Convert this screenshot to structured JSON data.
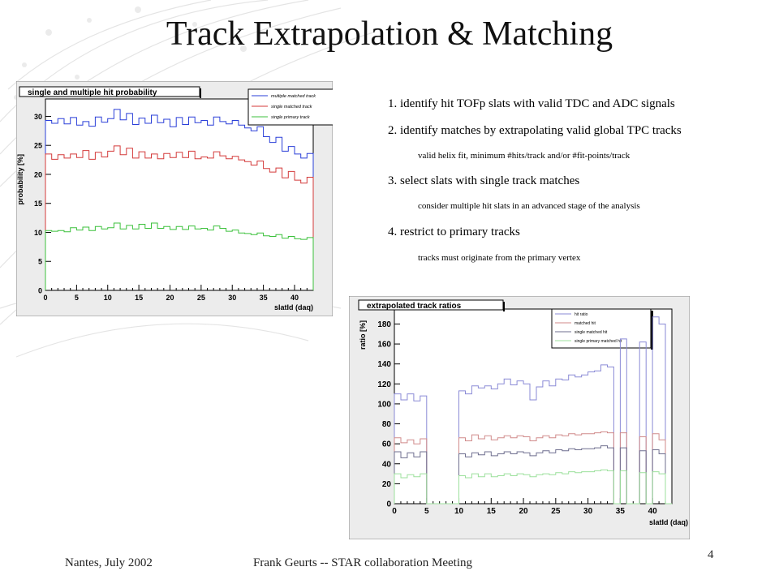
{
  "slide": {
    "title": "Track Extrapolation & Matching",
    "bullets": [
      "1.  identify hit TOFp slats with valid TDC and ADC signals",
      "2.  identify matches by extrapolating valid global TPC tracks",
      "3.  select slats with single track matches",
      "4.  restrict to primary tracks"
    ],
    "subs": [
      "valid helix fit, minimum  #hits/track  and/or  #fit-points/track",
      "consider multiple hit slats in an advanced stage of the analysis",
      "tracks must originate  from the primary  vertex"
    ],
    "footer": {
      "left": "Nantes, July  2002",
      "center": "Frank Geurts -- STAR collaboration Meeting",
      "page": "4"
    }
  },
  "chart_data": [
    {
      "type": "line",
      "title": "single and multiple hit probability",
      "xlabel": "slatId (daq)",
      "ylabel": "probability [%]",
      "xlim": [
        0,
        43
      ],
      "ylim": [
        0,
        33
      ],
      "xticks": [
        0,
        5,
        10,
        15,
        20,
        25,
        30,
        35,
        40
      ],
      "yticks": [
        0,
        5,
        10,
        15,
        20,
        25,
        30
      ],
      "series": [
        {
          "name": "multiple matched track",
          "color": "#2a3fd8",
          "values": [
            29.3,
            28.8,
            29.6,
            28.7,
            29.8,
            28.5,
            29.1,
            28.3,
            29.9,
            29.0,
            29.6,
            31.2,
            29.4,
            30.5,
            28.6,
            29.7,
            28.8,
            30.2,
            28.9,
            29.5,
            28.2,
            29.8,
            28.6,
            29.9,
            28.9,
            29.3,
            28.5,
            29.9,
            29.1,
            28.7,
            29.3,
            28.5,
            28.0,
            27.5,
            28.2,
            26.5,
            25.5,
            26.4,
            24.0,
            24.8,
            23.5,
            22.8,
            23.6
          ]
        },
        {
          "name": "single matched track",
          "color": "#d43a3a",
          "values": [
            23.5,
            22.6,
            23.4,
            22.8,
            23.5,
            22.9,
            24.1,
            22.6,
            23.8,
            23.0,
            24.0,
            24.9,
            23.4,
            24.5,
            22.8,
            23.9,
            22.8,
            23.5,
            22.7,
            23.6,
            22.9,
            23.8,
            22.9,
            24.0,
            22.7,
            23.0,
            22.8,
            23.9,
            23.2,
            22.7,
            23.1,
            22.5,
            22.2,
            21.6,
            22.3,
            21.0,
            20.4,
            21.1,
            19.4,
            20.5,
            19.0,
            18.5,
            19.5
          ]
        },
        {
          "name": "single primary track",
          "color": "#3cc13c",
          "values": [
            10.3,
            10.2,
            10.3,
            10.1,
            10.8,
            10.4,
            10.9,
            10.3,
            11.0,
            10.6,
            10.8,
            11.6,
            10.6,
            11.2,
            10.6,
            11.4,
            10.7,
            11.6,
            10.7,
            11.0,
            10.5,
            11.0,
            10.5,
            11.1,
            10.6,
            10.7,
            10.4,
            11.1,
            10.7,
            10.2,
            10.4,
            9.9,
            9.8,
            9.6,
            9.9,
            9.4,
            9.3,
            9.6,
            9.0,
            9.3,
            8.9,
            8.8,
            9.1
          ]
        }
      ]
    },
    {
      "type": "line",
      "title": "extrapolated track ratios",
      "xlabel": "slatId (daq)",
      "ylabel": "ratio [%]",
      "xlim": [
        0,
        43
      ],
      "ylim": [
        0,
        195
      ],
      "xticks": [
        0,
        5,
        10,
        15,
        20,
        25,
        30,
        35,
        40
      ],
      "yticks": [
        0,
        20,
        40,
        60,
        80,
        100,
        120,
        140,
        160,
        180
      ],
      "series": [
        {
          "name": "hit ratio",
          "color": "#8a8ad6",
          "values": [
            110,
            104,
            110,
            103,
            108,
            0,
            0,
            0,
            0,
            0,
            113,
            110,
            118,
            116,
            118,
            115,
            120,
            125,
            119,
            123,
            120,
            104,
            117,
            123,
            118,
            125,
            124,
            129,
            127,
            129,
            132,
            133,
            139,
            137,
            0,
            165,
            0,
            0,
            162,
            0,
            187,
            180,
            0
          ]
        },
        {
          "name": "matched hit",
          "color": "#d08a8a",
          "values": [
            66,
            61,
            64,
            60,
            65,
            0,
            0,
            0,
            0,
            0,
            66,
            63,
            69,
            65,
            68,
            64,
            66,
            68,
            66,
            68,
            67,
            63,
            66,
            68,
            66,
            69,
            68,
            70,
            69,
            70,
            70,
            71,
            72,
            71,
            0,
            71,
            0,
            0,
            67,
            0,
            70,
            64,
            0
          ]
        },
        {
          "name": "single matched hit",
          "color": "#6f6f8f",
          "values": [
            52,
            46,
            51,
            47,
            52,
            0,
            0,
            0,
            0,
            0,
            50,
            47,
            51,
            49,
            52,
            48,
            50,
            52,
            50,
            52,
            51,
            48,
            51,
            53,
            51,
            54,
            53,
            55,
            54,
            55,
            55,
            56,
            58,
            56,
            0,
            56,
            0,
            0,
            53,
            0,
            54,
            50,
            0
          ]
        },
        {
          "name": "single primary matched hit",
          "color": "#9ce09c",
          "values": [
            30,
            26,
            29,
            27,
            30,
            0,
            0,
            0,
            0,
            0,
            28,
            26,
            30,
            27,
            30,
            27,
            28,
            30,
            28,
            30,
            29,
            27,
            29,
            30,
            29,
            31,
            30,
            32,
            31,
            32,
            32,
            33,
            34,
            33,
            0,
            33,
            0,
            0,
            31,
            0,
            32,
            30,
            0
          ]
        }
      ]
    }
  ]
}
